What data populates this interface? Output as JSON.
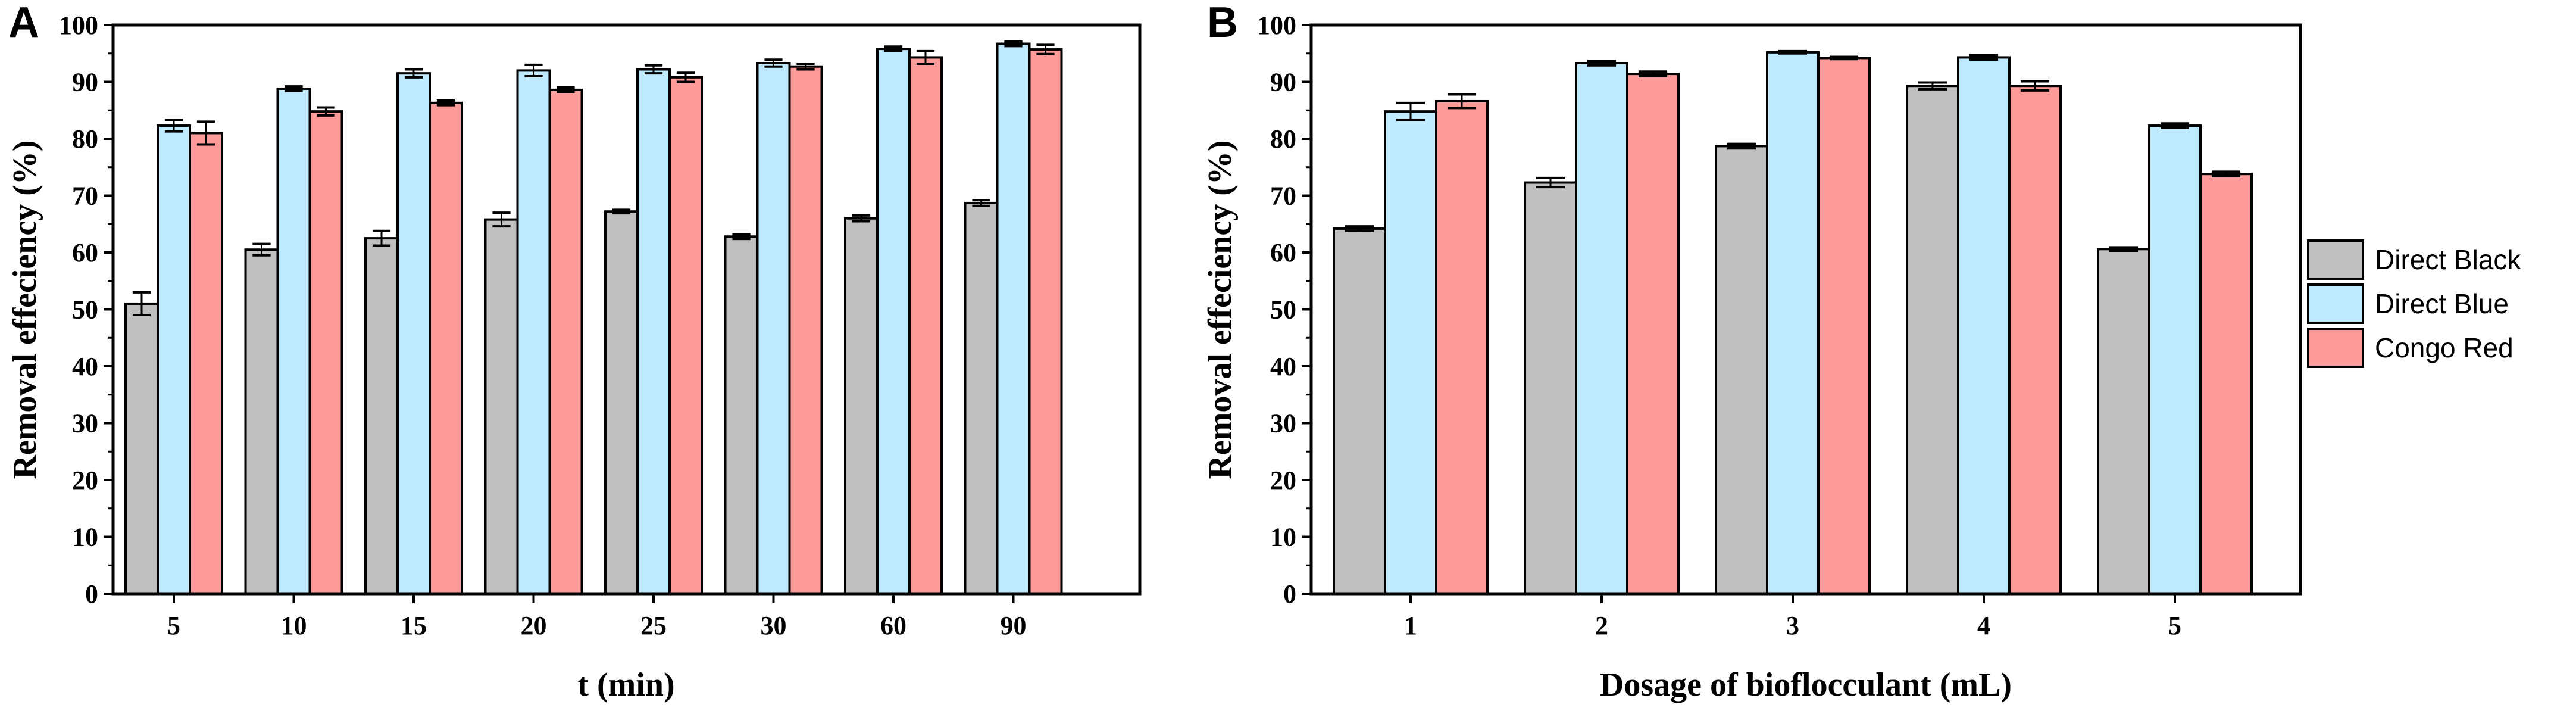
{
  "chart_data": [
    {
      "panel": "A",
      "type": "bar",
      "title": "",
      "xlabel": "t (min)",
      "ylabel": "Removal effeciency (%)",
      "ylim": [
        0,
        100
      ],
      "yticks": [
        "0",
        "10",
        "20",
        "30",
        "40",
        "50",
        "60",
        "70",
        "80",
        "90",
        "100"
      ],
      "categories": [
        "5",
        "10",
        "15",
        "20",
        "25",
        "30",
        "60",
        "90"
      ],
      "series": [
        {
          "name": "Direct Black",
          "values": [
            51,
            60.5,
            62.5,
            65.8,
            67.2,
            62.8,
            66,
            68.7
          ],
          "errors": [
            2,
            1,
            1.3,
            1.2,
            0.3,
            0.4,
            0.5,
            0.5
          ]
        },
        {
          "name": "Direct Blue",
          "values": [
            82.3,
            88.8,
            91.5,
            92,
            92.2,
            93.3,
            95.8,
            96.7
          ],
          "errors": [
            1,
            0.4,
            0.7,
            1,
            0.7,
            0.6,
            0.4,
            0.4
          ]
        },
        {
          "name": "Congo Red",
          "values": [
            81,
            84.8,
            86.3,
            88.6,
            90.8,
            92.7,
            94.3,
            95.7
          ],
          "errors": [
            2,
            0.7,
            0.4,
            0.4,
            0.8,
            0.5,
            1.1,
            0.8
          ]
        }
      ],
      "grid": false
    },
    {
      "panel": "B",
      "type": "bar",
      "title": "",
      "xlabel": "Dosage of bioflocculant (mL)",
      "ylabel": "Removal effeciency (%)",
      "ylim": [
        0,
        100
      ],
      "yticks": [
        "0",
        "10",
        "20",
        "30",
        "40",
        "50",
        "60",
        "70",
        "80",
        "90",
        "100"
      ],
      "categories": [
        "1",
        "2",
        "3",
        "4",
        "5"
      ],
      "series": [
        {
          "name": "Direct Black",
          "values": [
            64.2,
            72.3,
            78.7,
            89.3,
            60.6
          ],
          "errors": [
            0.4,
            0.8,
            0.4,
            0.6,
            0.3
          ]
        },
        {
          "name": "Direct Blue",
          "values": [
            84.8,
            93.3,
            95.2,
            94.3,
            82.3
          ],
          "errors": [
            1.5,
            0.4,
            0.2,
            0.4,
            0.4
          ]
        },
        {
          "name": "Congo Red",
          "values": [
            86.6,
            91.4,
            94.2,
            89.3,
            73.8
          ],
          "errors": [
            1.2,
            0.4,
            0.2,
            0.8,
            0.4
          ]
        }
      ],
      "grid": false
    }
  ],
  "legend": {
    "placement": "right of panel B",
    "items": [
      {
        "label": "Direct Black",
        "color": "#c0c0c0"
      },
      {
        "label": "Direct Blue",
        "color": "#bfe9fd"
      },
      {
        "label": "Congo Red",
        "color": "#fd9a9a"
      }
    ]
  },
  "colors": {
    "Direct Black": "#c0c0c0",
    "Direct Blue": "#bfe9fd",
    "Congo Red": "#fd9a9a",
    "outline": "#000000"
  }
}
